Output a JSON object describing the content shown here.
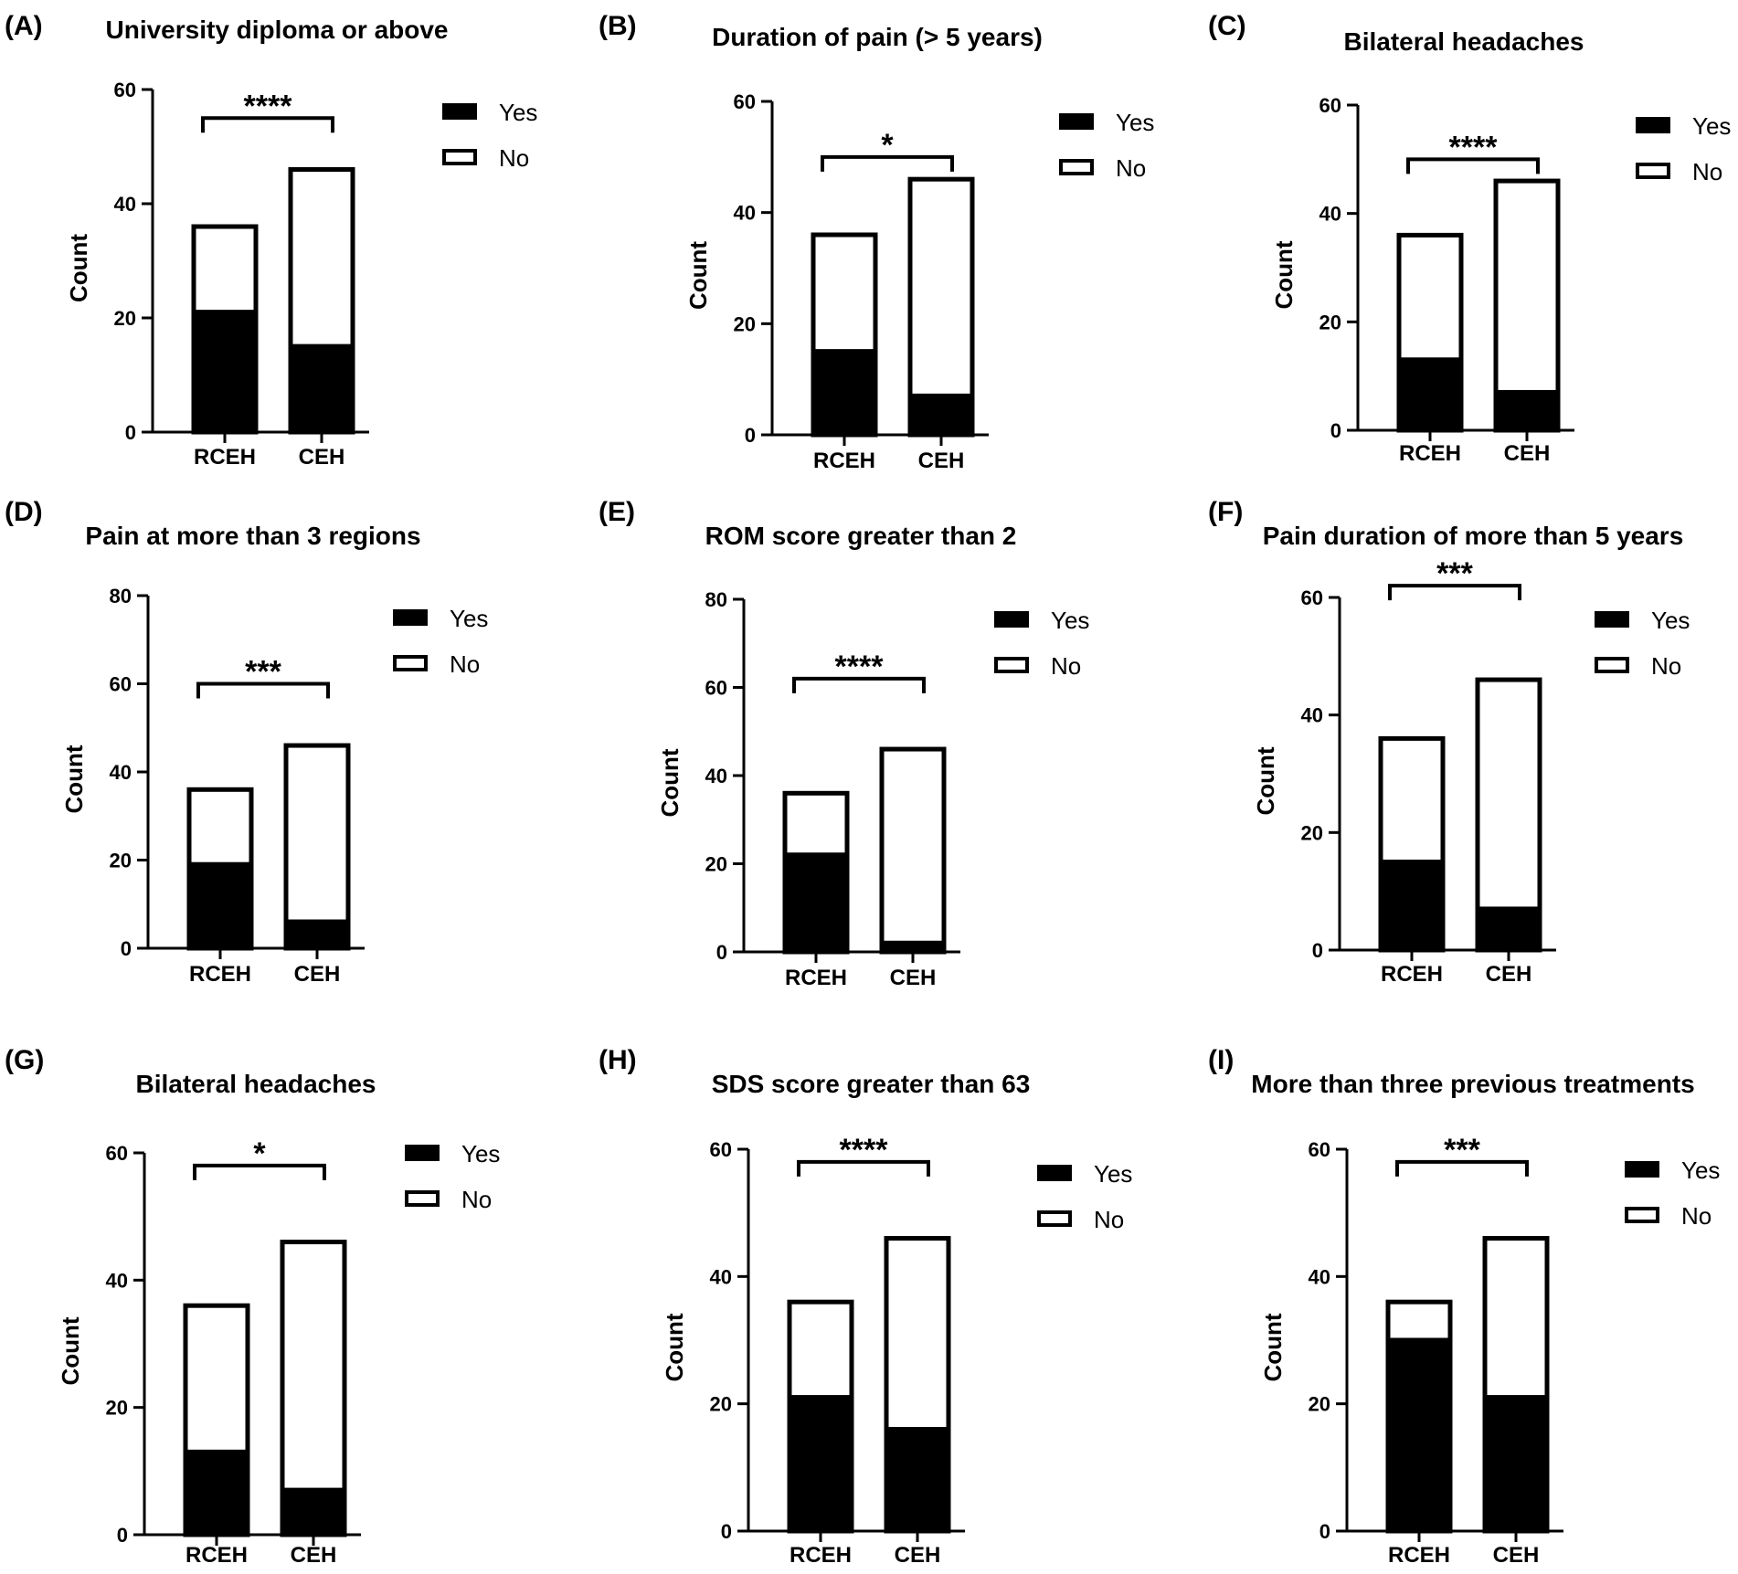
{
  "chart_data": [
    {
      "panel": "(A)",
      "type": "bar",
      "stacked": true,
      "title": "University diploma or above",
      "categories": [
        "RCEH",
        "CEH"
      ],
      "series": [
        {
          "name": "Yes",
          "values": [
            21,
            15
          ]
        },
        {
          "name": "No",
          "values": [
            15,
            31
          ]
        }
      ],
      "ylabel": "Count",
      "ylim": [
        0,
        60
      ],
      "yticks": [
        0,
        20,
        40,
        60
      ],
      "significance": "****",
      "legend": [
        "Yes",
        "No"
      ]
    },
    {
      "panel": "(B)",
      "type": "bar",
      "stacked": true,
      "title": "Duration of pain (> 5 years)",
      "categories": [
        "RCEH",
        "CEH"
      ],
      "series": [
        {
          "name": "Yes",
          "values": [
            15,
            7
          ]
        },
        {
          "name": "No",
          "values": [
            21,
            39
          ]
        }
      ],
      "ylabel": "Count",
      "ylim": [
        0,
        60
      ],
      "yticks": [
        0,
        20,
        40,
        60
      ],
      "significance": "*",
      "legend": [
        "Yes",
        "No"
      ]
    },
    {
      "panel": "(C)",
      "type": "bar",
      "stacked": true,
      "title": "Bilateral headaches",
      "categories": [
        "RCEH",
        "CEH"
      ],
      "series": [
        {
          "name": "Yes",
          "values": [
            13,
            7
          ]
        },
        {
          "name": "No",
          "values": [
            23,
            39
          ]
        }
      ],
      "ylabel": "Count",
      "ylim": [
        0,
        60
      ],
      "yticks": [
        0,
        20,
        40,
        60
      ],
      "significance": "****",
      "legend": [
        "Yes",
        "No"
      ]
    },
    {
      "panel": "(D)",
      "type": "bar",
      "stacked": true,
      "title": "Pain at more than 3 regions",
      "categories": [
        "RCEH",
        "CEH"
      ],
      "series": [
        {
          "name": "Yes",
          "values": [
            19,
            6
          ]
        },
        {
          "name": "No",
          "values": [
            17,
            40
          ]
        }
      ],
      "ylabel": "Count",
      "ylim": [
        0,
        80
      ],
      "yticks": [
        0,
        20,
        40,
        60,
        80
      ],
      "significance": "***",
      "legend": [
        "Yes",
        "No"
      ]
    },
    {
      "panel": "(E)",
      "type": "bar",
      "stacked": true,
      "title": "ROM score greater than 2",
      "categories": [
        "RCEH",
        "CEH"
      ],
      "series": [
        {
          "name": "Yes",
          "values": [
            22,
            2
          ]
        },
        {
          "name": "No",
          "values": [
            14,
            44
          ]
        }
      ],
      "ylabel": "Count",
      "ylim": [
        0,
        80
      ],
      "yticks": [
        0,
        20,
        40,
        60,
        80
      ],
      "significance": "****",
      "legend": [
        "Yes",
        "No"
      ]
    },
    {
      "panel": "(F)",
      "type": "bar",
      "stacked": true,
      "title": "Pain duration of more than 5 years",
      "categories": [
        "RCEH",
        "CEH"
      ],
      "series": [
        {
          "name": "Yes",
          "values": [
            15,
            7
          ]
        },
        {
          "name": "No",
          "values": [
            21,
            39
          ]
        }
      ],
      "ylabel": "Count",
      "ylim": [
        0,
        60
      ],
      "yticks": [
        0,
        20,
        40,
        60
      ],
      "significance": "***",
      "legend": [
        "Yes",
        "No"
      ]
    },
    {
      "panel": "(G)",
      "type": "bar",
      "stacked": true,
      "title": "Bilateral headaches",
      "categories": [
        "RCEH",
        "CEH"
      ],
      "series": [
        {
          "name": "Yes",
          "values": [
            13,
            7
          ]
        },
        {
          "name": "No",
          "values": [
            23,
            39
          ]
        }
      ],
      "ylabel": "Count",
      "ylim": [
        0,
        60
      ],
      "yticks": [
        0,
        20,
        40,
        60
      ],
      "significance": "*",
      "legend": [
        "Yes",
        "No"
      ]
    },
    {
      "panel": "(H)",
      "type": "bar",
      "stacked": true,
      "title": "SDS score greater than 63",
      "categories": [
        "RCEH",
        "CEH"
      ],
      "series": [
        {
          "name": "Yes",
          "values": [
            21,
            16
          ]
        },
        {
          "name": "No",
          "values": [
            15,
            30
          ]
        }
      ],
      "ylabel": "Count",
      "ylim": [
        0,
        60
      ],
      "yticks": [
        0,
        20,
        40,
        60
      ],
      "significance": "****",
      "legend": [
        "Yes",
        "No"
      ]
    },
    {
      "panel": "(I)",
      "type": "bar",
      "stacked": true,
      "title": "More than three previous treatments",
      "categories": [
        "RCEH",
        "CEH"
      ],
      "series": [
        {
          "name": "Yes",
          "values": [
            30,
            21
          ]
        },
        {
          "name": "No",
          "values": [
            6,
            25
          ]
        }
      ],
      "ylabel": "Count",
      "ylim": [
        0,
        60
      ],
      "yticks": [
        0,
        20,
        40,
        60
      ],
      "significance": "***",
      "legend": [
        "Yes",
        "No"
      ]
    }
  ],
  "colors": {
    "yes": "#000000",
    "no": "#ffffff",
    "axis": "#000000"
  }
}
